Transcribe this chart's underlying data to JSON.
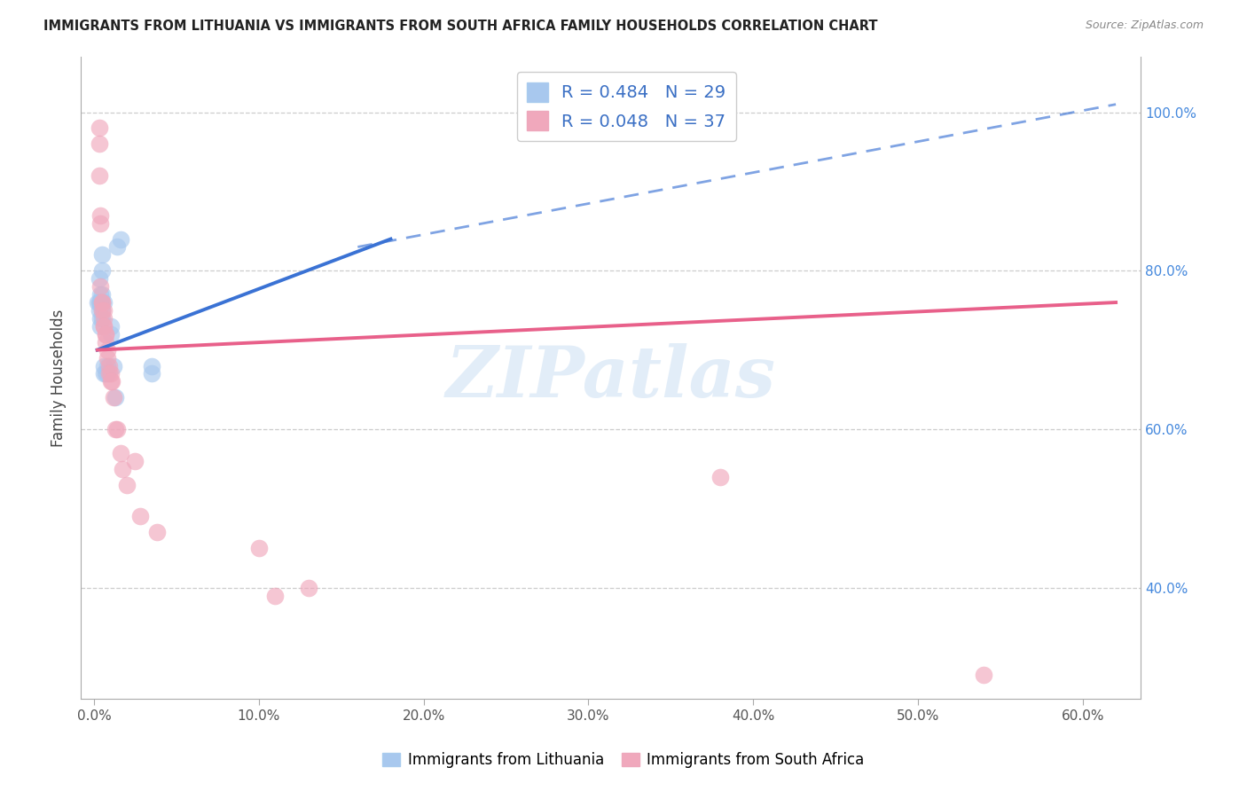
{
  "title": "IMMIGRANTS FROM LITHUANIA VS IMMIGRANTS FROM SOUTH AFRICA FAMILY HOUSEHOLDS CORRELATION CHART",
  "source": "Source: ZipAtlas.com",
  "ylabel": "Family Households",
  "x_tick_labels": [
    "0.0%",
    "10.0%",
    "20.0%",
    "30.0%",
    "40.0%",
    "50.0%",
    "60.0%"
  ],
  "x_tick_vals": [
    0.0,
    0.1,
    0.2,
    0.3,
    0.4,
    0.5,
    0.6
  ],
  "y_tick_labels": [
    "40.0%",
    "60.0%",
    "80.0%",
    "100.0%"
  ],
  "y_tick_vals": [
    0.4,
    0.6,
    0.8,
    1.0
  ],
  "xlim": [
    -0.008,
    0.635
  ],
  "ylim": [
    0.26,
    1.07
  ],
  "legend_label_blue": "R = 0.484   N = 29",
  "legend_label_pink": "R = 0.048   N = 37",
  "watermark": "ZIPatlas",
  "blue_color": "#a8c8ee",
  "pink_color": "#f0a8bc",
  "blue_line_color": "#3a72d4",
  "pink_line_color": "#e8608a",
  "blue_scatter": [
    [
      0.002,
      0.76
    ],
    [
      0.003,
      0.79
    ],
    [
      0.003,
      0.76
    ],
    [
      0.003,
      0.75
    ],
    [
      0.004,
      0.76
    ],
    [
      0.004,
      0.77
    ],
    [
      0.004,
      0.74
    ],
    [
      0.004,
      0.73
    ],
    [
      0.004,
      0.76
    ],
    [
      0.005,
      0.75
    ],
    [
      0.005,
      0.77
    ],
    [
      0.005,
      0.76
    ],
    [
      0.005,
      0.74
    ],
    [
      0.005,
      0.8
    ],
    [
      0.005,
      0.82
    ],
    [
      0.006,
      0.76
    ],
    [
      0.006,
      0.68
    ],
    [
      0.006,
      0.67
    ],
    [
      0.007,
      0.67
    ],
    [
      0.008,
      0.67
    ],
    [
      0.008,
      0.68
    ],
    [
      0.01,
      0.73
    ],
    [
      0.01,
      0.72
    ],
    [
      0.012,
      0.68
    ],
    [
      0.013,
      0.64
    ],
    [
      0.014,
      0.83
    ],
    [
      0.016,
      0.84
    ],
    [
      0.035,
      0.68
    ],
    [
      0.035,
      0.67
    ]
  ],
  "pink_scatter": [
    [
      0.003,
      0.98
    ],
    [
      0.003,
      0.96
    ],
    [
      0.003,
      0.92
    ],
    [
      0.004,
      0.87
    ],
    [
      0.004,
      0.86
    ],
    [
      0.004,
      0.78
    ],
    [
      0.005,
      0.76
    ],
    [
      0.005,
      0.76
    ],
    [
      0.005,
      0.75
    ],
    [
      0.006,
      0.75
    ],
    [
      0.006,
      0.74
    ],
    [
      0.006,
      0.73
    ],
    [
      0.006,
      0.73
    ],
    [
      0.007,
      0.72
    ],
    [
      0.007,
      0.71
    ],
    [
      0.007,
      0.72
    ],
    [
      0.008,
      0.7
    ],
    [
      0.008,
      0.69
    ],
    [
      0.009,
      0.68
    ],
    [
      0.009,
      0.67
    ],
    [
      0.01,
      0.67
    ],
    [
      0.01,
      0.66
    ],
    [
      0.011,
      0.66
    ],
    [
      0.012,
      0.64
    ],
    [
      0.013,
      0.6
    ],
    [
      0.014,
      0.6
    ],
    [
      0.016,
      0.57
    ],
    [
      0.017,
      0.55
    ],
    [
      0.02,
      0.53
    ],
    [
      0.025,
      0.56
    ],
    [
      0.028,
      0.49
    ],
    [
      0.038,
      0.47
    ],
    [
      0.1,
      0.45
    ],
    [
      0.11,
      0.39
    ],
    [
      0.13,
      0.4
    ],
    [
      0.38,
      0.54
    ],
    [
      0.54,
      0.29
    ]
  ],
  "blue_solid_line": {
    "x0": 0.002,
    "x1": 0.18,
    "y0": 0.7,
    "y1": 0.84
  },
  "blue_dashed_line": {
    "x0": 0.16,
    "x1": 0.62,
    "y0": 0.83,
    "y1": 1.01
  },
  "pink_solid_line": {
    "x0": 0.002,
    "x1": 0.62,
    "y0": 0.7,
    "y1": 0.76
  }
}
